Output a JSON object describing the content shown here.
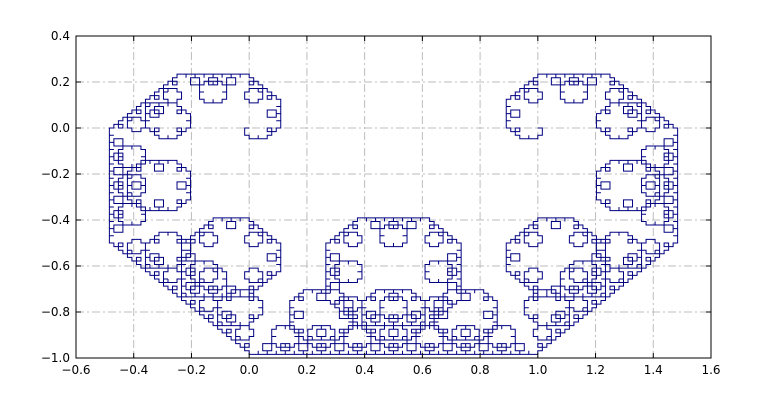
{
  "chart_data": {
    "type": "line",
    "title": "",
    "xlabel": "",
    "ylabel": "",
    "xlim": [
      -0.6,
      1.6
    ],
    "ylim": [
      -1.0,
      0.4
    ],
    "xticks": [
      -0.6,
      -0.4,
      -0.2,
      0.0,
      0.2,
      0.4,
      0.6,
      0.8,
      1.0,
      1.2,
      1.4,
      1.6
    ],
    "yticks": [
      -1.0,
      -0.8,
      -0.6,
      -0.4,
      -0.2,
      0.0,
      0.2,
      0.4
    ],
    "xtick_labels": [
      "−0.6",
      "−0.4",
      "−0.2",
      "0.0",
      "0.2",
      "0.4",
      "0.6",
      "0.8",
      "1.0",
      "1.2",
      "1.4",
      "1.6"
    ],
    "ytick_labels": [
      "−1.0",
      "−0.8",
      "−0.6",
      "−0.4",
      "−0.2",
      "0.0",
      "0.2",
      "0.4"
    ],
    "grid": true,
    "grid_style": "dash-dot",
    "series": [
      {
        "color": "#000080",
        "curve": "Levy C curve (fractal, order 12), from (0,0) to (1,0)",
        "order": 12,
        "start": [
          0.0,
          0.0
        ],
        "end": [
          1.0,
          0.0
        ],
        "x_range": [
          -0.5,
          1.5
        ],
        "y_range": [
          -1.0,
          0.25
        ]
      }
    ]
  }
}
